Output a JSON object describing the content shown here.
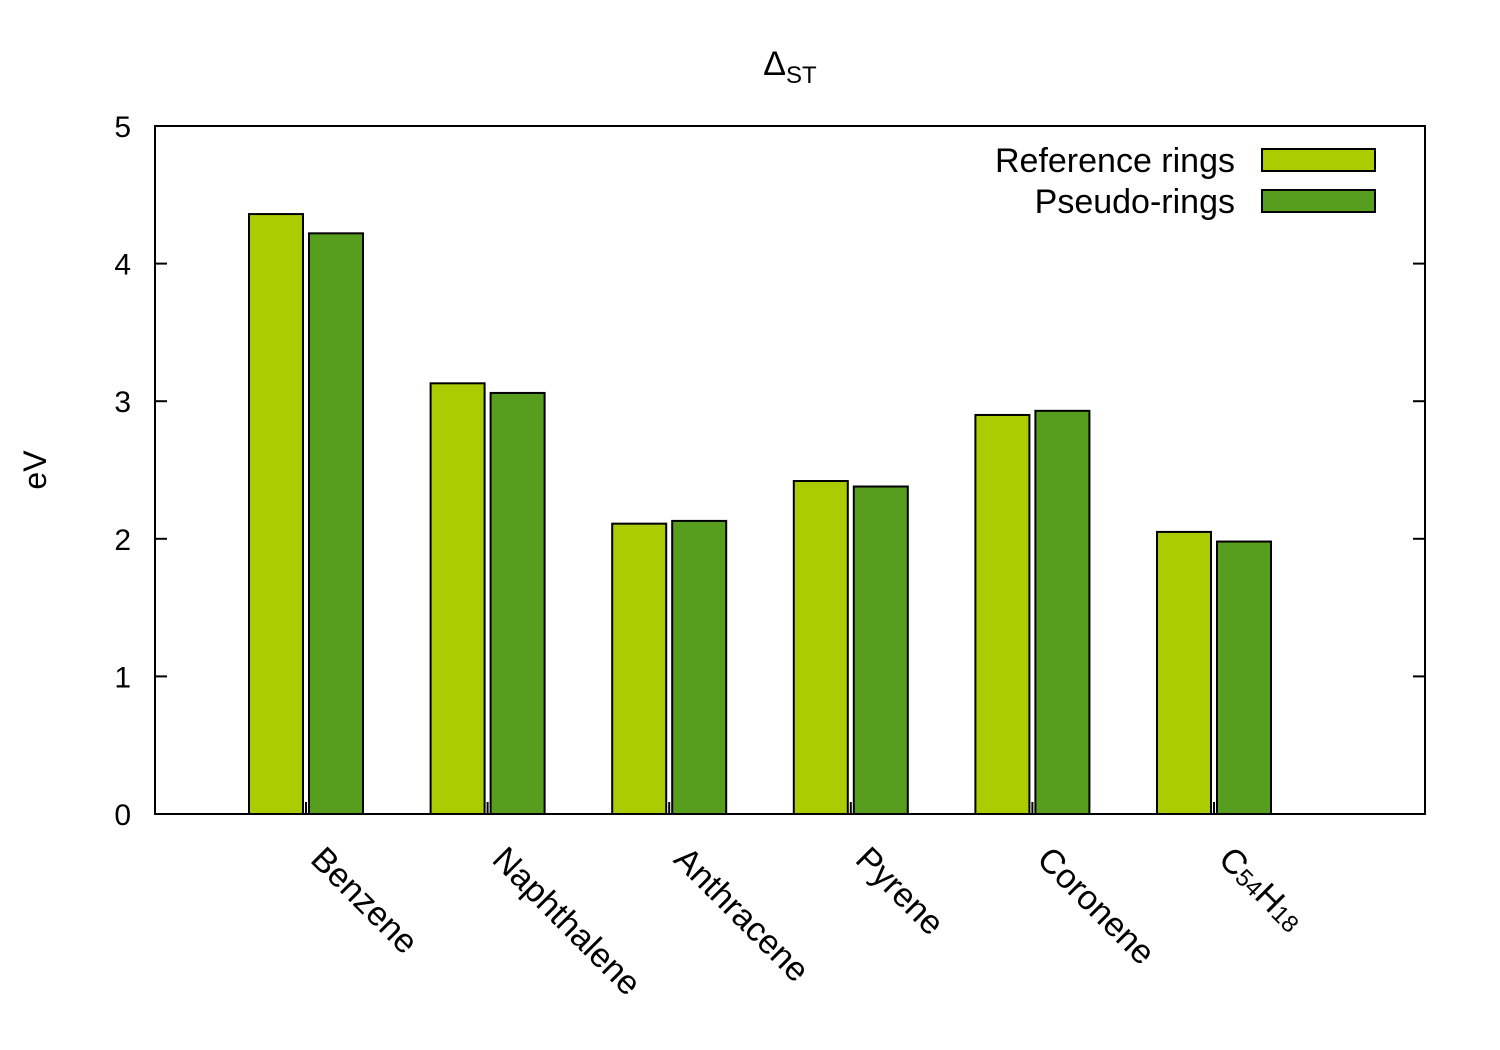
{
  "chart_data": {
    "type": "bar",
    "title": "ΔST",
    "title_main": "Δ",
    "title_sub": "ST",
    "xlabel": "",
    "ylabel": "eV",
    "ylim": [
      0,
      5
    ],
    "yticks": [
      0,
      1,
      2,
      3,
      4,
      5
    ],
    "categories": [
      "Benzene",
      "Naphthalene",
      "Anthracene",
      "Pyrene",
      "Coronene",
      "C54H18"
    ],
    "category_parts": [
      [
        {
          "t": "Benzene"
        }
      ],
      [
        {
          "t": "Naphthalene"
        }
      ],
      [
        {
          "t": "Anthracene"
        }
      ],
      [
        {
          "t": "Pyrene"
        }
      ],
      [
        {
          "t": "Coronene"
        }
      ],
      [
        {
          "t": "C"
        },
        {
          "t": "54",
          "sub": true
        },
        {
          "t": "H"
        },
        {
          "t": "18",
          "sub": true
        }
      ]
    ],
    "series": [
      {
        "name": "Reference rings",
        "color": "#aacc00",
        "values": [
          4.36,
          3.13,
          2.11,
          2.42,
          2.9,
          2.05
        ]
      },
      {
        "name": "Pseudo-rings",
        "color": "#589e1e",
        "values": [
          4.22,
          3.06,
          2.13,
          2.38,
          2.93,
          1.98
        ]
      }
    ],
    "legend_position": "top-right",
    "grid": false
  }
}
